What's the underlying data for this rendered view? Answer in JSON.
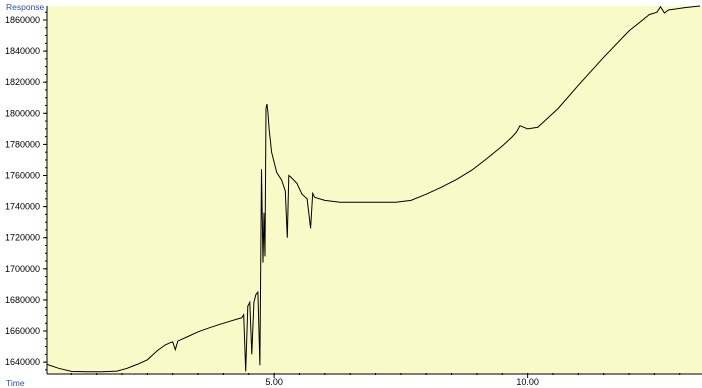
{
  "colors": {
    "plot_background": "#fafac8",
    "trace": "#000000",
    "axis": "#000000",
    "axis_label": "#2f4fb0"
  },
  "chart_data": {
    "type": "line",
    "xlabel": "Time",
    "ylabel": "Response",
    "x_ticks": [
      {
        "value": 5.0,
        "label": "5.00"
      },
      {
        "value": 10.0,
        "label": "10.00"
      }
    ],
    "y_ticks": [
      {
        "value": 1640000,
        "label": "1640000"
      },
      {
        "value": 1660000,
        "label": "1660000"
      },
      {
        "value": 1680000,
        "label": "1680000"
      },
      {
        "value": 1700000,
        "label": "1700000"
      },
      {
        "value": 1720000,
        "label": "1720000"
      },
      {
        "value": 1740000,
        "label": "1740000"
      },
      {
        "value": 1760000,
        "label": "1760000"
      },
      {
        "value": 1780000,
        "label": "1780000"
      },
      {
        "value": 1800000,
        "label": "1800000"
      },
      {
        "value": 1820000,
        "label": "1820000"
      },
      {
        "value": 1840000,
        "label": "1840000"
      },
      {
        "value": 1860000,
        "label": "1860000"
      }
    ],
    "xlim": [
      0.52,
      13.4
    ],
    "ylim": [
      1633000,
      1869000
    ],
    "grid": false,
    "series": [
      {
        "x": [
          0.52,
          0.75,
          1.0,
          1.3,
          1.6,
          1.9,
          2.1,
          2.3,
          2.5,
          2.7,
          2.85,
          2.95,
          3.0,
          3.05,
          3.1,
          3.3,
          3.5,
          3.7,
          3.9,
          4.1,
          4.3,
          4.36,
          4.4,
          4.44,
          4.48,
          4.52,
          4.56,
          4.6,
          4.64,
          4.68,
          4.72,
          4.75,
          4.78,
          4.8,
          4.82,
          4.84,
          4.86,
          4.88,
          4.9,
          4.95,
          5.05,
          5.15,
          5.22,
          5.26,
          5.29,
          5.33,
          5.45,
          5.55,
          5.65,
          5.72,
          5.76,
          5.8,
          6.0,
          6.3,
          6.7,
          7.1,
          7.4,
          7.7,
          8.0,
          8.3,
          8.6,
          8.9,
          9.2,
          9.5,
          9.7,
          9.78,
          9.85,
          10.0,
          10.2,
          10.6,
          11.0,
          11.5,
          12.0,
          12.4,
          12.55,
          12.62,
          12.7,
          12.78,
          12.9,
          13.1,
          13.4
        ],
        "y": [
          1638500,
          1636000,
          1634000,
          1633800,
          1633800,
          1634200,
          1636000,
          1638500,
          1641500,
          1647500,
          1651000,
          1652500,
          1653000,
          1648000,
          1653500,
          1656500,
          1659500,
          1661800,
          1664000,
          1666000,
          1668000,
          1668500,
          1670500,
          1634000,
          1676000,
          1678500,
          1645000,
          1678500,
          1683500,
          1685000,
          1638000,
          1764000,
          1704000,
          1736000,
          1708000,
          1803500,
          1806000,
          1800000,
          1790000,
          1775000,
          1762000,
          1757000,
          1750000,
          1720000,
          1760000,
          1759000,
          1755000,
          1748000,
          1745000,
          1726000,
          1748500,
          1746000,
          1744000,
          1742800,
          1742800,
          1742800,
          1742800,
          1744000,
          1748000,
          1752500,
          1757500,
          1763500,
          1771000,
          1779000,
          1785000,
          1788000,
          1792000,
          1790000,
          1791000,
          1803000,
          1818000,
          1836000,
          1853000,
          1863500,
          1865000,
          1868500,
          1864500,
          1866500,
          1867000,
          1868000,
          1869000
        ]
      }
    ]
  }
}
